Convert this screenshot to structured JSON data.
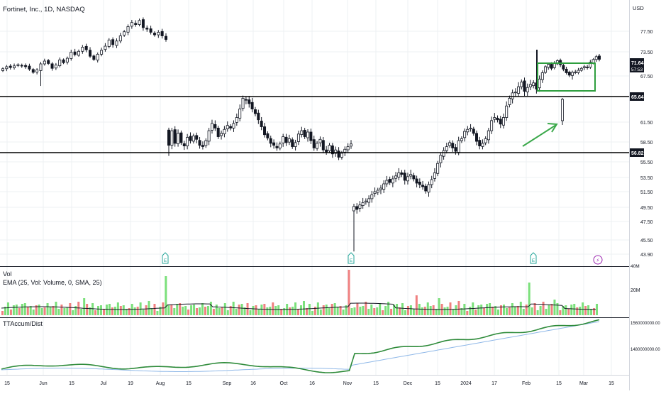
{
  "header": {
    "title": "Fortinet, Inc., 1D, NASDAQ",
    "currency": "USD"
  },
  "colors": {
    "up": "#26a69a",
    "down": "#ef5350",
    "vol_up": "#7be07b",
    "vol_down": "#f08080",
    "box": "#2e9e3e",
    "arrow": "#3aa84a",
    "accum": "#2e8b3a",
    "accum_ma": "#8fb8e8",
    "level_line": "#000000",
    "grid": "#eef0f3"
  },
  "price_axis": {
    "ticks": [
      "77.50",
      "73.50",
      "67.50",
      "61.50",
      "58.50",
      "55.50",
      "53.50",
      "51.50",
      "49.50",
      "47.50",
      "45.50",
      "43.90"
    ],
    "tick_values": [
      77.5,
      73.5,
      67.5,
      61.5,
      58.5,
      55.5,
      53.5,
      51.5,
      49.5,
      47.5,
      45.5,
      43.9
    ],
    "current_price": "71.64",
    "countdown": "57:53",
    "level_labels": [
      "65.64",
      "56.82"
    ],
    "level_values": [
      65.64,
      56.82
    ]
  },
  "time_axis": [
    "15",
    "Jun",
    "15",
    "Jul",
    "19",
    "Aug",
    "15",
    "Sep",
    "16",
    "Oct",
    "16",
    "Nov",
    "15",
    "Dec",
    "15",
    "2024",
    "17",
    "Feb",
    "15",
    "Mar",
    "15"
  ],
  "event_markers": [
    {
      "date": "Aug",
      "glyph": "E"
    },
    {
      "date": "Nov",
      "glyph": "E"
    },
    {
      "date": "Feb",
      "glyph": "E"
    },
    {
      "date": "Mar",
      "glyph": "⚡"
    }
  ],
  "volume_pane": {
    "title": "Vol",
    "legend": "EMA (25, Vol: Volume, 0, SMA, 25)",
    "axis_label": "20M"
  },
  "accum_pane": {
    "title": "TTAccum/Dist",
    "axis_labels": [
      "1560000000.00",
      "1480000000.00"
    ]
  },
  "annotations": {
    "box": {
      "from": "Feb",
      "to": "Mar",
      "low": 67.3,
      "high": 72.3
    },
    "arrow": "green arrow pointing to the February gap-up"
  },
  "chart_data": {
    "type": "candlestick",
    "title": "Fortinet, Inc., 1D, NASDAQ",
    "ylim": [
      43.9,
      79.8
    ],
    "levels": [
      65.64,
      56.82
    ],
    "last_price": 71.64,
    "series": [
      {
        "name": "Fortinet, Inc.",
        "segment": "May–Jul 2023",
        "close": [
          69.3,
          69.8,
          69.6,
          70.0,
          70.3,
          70.1,
          69.8,
          69.2,
          68.4,
          69.0,
          70.5,
          71.2,
          70.6,
          69.4,
          70.2,
          71.5,
          70.8,
          71.9,
          73.4,
          72.8,
          73.6,
          74.4,
          73.9,
          72.4,
          71.6,
          72.9,
          73.8,
          74.6,
          75.8,
          74.9,
          75.6,
          76.6,
          77.4,
          78.4,
          79.2,
          78.8,
          79.6,
          78.2,
          77.9,
          77.3,
          76.8,
          77.3,
          76.6,
          75.9
        ]
      },
      {
        "name": "Fortinet, Inc.",
        "segment": "Aug–Oct 2023",
        "close": [
          58.0,
          60.2,
          58.3,
          59.8,
          58.4,
          57.9,
          59.2,
          58.7,
          59.4,
          58.9,
          58.0,
          57.8,
          58.7,
          60.2,
          61.3,
          60.6,
          59.3,
          59.8,
          60.4,
          61.0,
          60.6,
          61.3,
          62.1,
          63.2,
          64.6,
          64.4,
          63.9,
          63.2,
          62.6,
          61.8,
          60.8,
          59.6,
          59.1,
          58.3,
          58.0,
          57.6,
          58.2,
          59.3,
          58.4,
          59.0,
          57.8,
          58.4,
          59.7,
          60.2,
          59.3,
          60.0,
          58.7,
          57.6,
          58.3,
          58.9,
          57.3,
          57.0,
          58.0,
          56.7,
          57.3,
          56.2,
          56.8,
          57.4,
          57.8,
          58.2
        ]
      },
      {
        "name": "Fortinet, Inc.",
        "segment": "Nov 2023–Mar 2024",
        "close": [
          49.6,
          49.2,
          49.8,
          50.1,
          50.3,
          50.6,
          51.1,
          51.5,
          51.7,
          52.0,
          52.6,
          53.1,
          52.8,
          53.3,
          53.7,
          54.1,
          53.9,
          53.1,
          53.6,
          53.9,
          53.3,
          52.7,
          52.5,
          52.2,
          51.6,
          52.5,
          53.2,
          54.1,
          55.3,
          56.5,
          57.2,
          57.8,
          58.4,
          57.6,
          57.1,
          58.7,
          59.0,
          60.1,
          60.4,
          60.6,
          59.8,
          58.6,
          57.9,
          58.3,
          59.0,
          60.2,
          61.7,
          62.1,
          61.8,
          61.2,
          62.1,
          63.6,
          64.6,
          65.3,
          65.4,
          66.1,
          66.7,
          65.5,
          66.0,
          66.4,
          66.6,
          65.8,
          67.1,
          68.3,
          69.8,
          70.4,
          69.4,
          70.6,
          71.3,
          70.3,
          69.2,
          68.3,
          67.7,
          68.4,
          68.5,
          68.9,
          69.4,
          69.8,
          69.6,
          70.9,
          71.6,
          72.3,
          71.64
        ]
      }
    ],
    "volume_ma_label": "EMA (25, Vol: Volume, 0, SMA, 25)",
    "accum_dist": {
      "name": "TTAccum/Dist",
      "start": 1475000000,
      "end": 1565000000,
      "jump_at": "Nov"
    }
  }
}
